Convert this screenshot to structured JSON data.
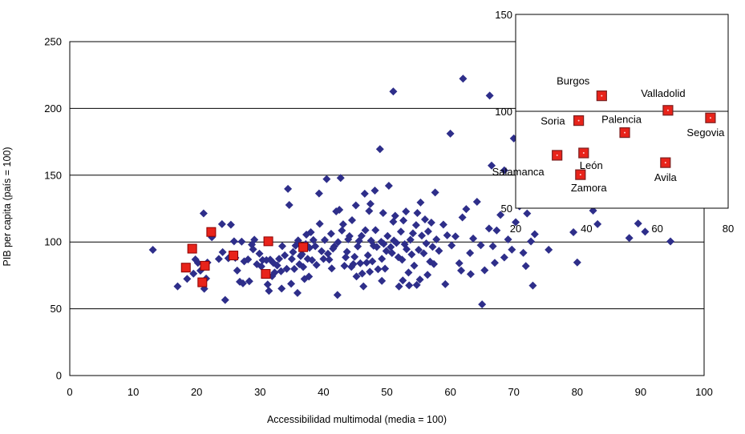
{
  "chart_data": [
    {
      "type": "scatter",
      "xlabel": "Accessibilidad multimodal (media = 100)",
      "ylabel": "PIB per capita (país = 100)",
      "xlim": [
        0,
        100
      ],
      "ylim": [
        0,
        250
      ],
      "x_ticks": [
        "0",
        "10",
        "20",
        "30",
        "40",
        "50",
        "60",
        "70",
        "80",
        "90",
        "100"
      ],
      "y_ticks": [
        "0",
        "50",
        "100",
        "150",
        "200",
        "250"
      ],
      "grid": "horizontal",
      "colors": {
        "other": "#2e2e8a",
        "highlight": "#e8231a",
        "highlight_border": "#8b0000"
      },
      "series": [
        {
          "marker": "diamond",
          "color": "#2e2e8a",
          "points": [
            [
              13.1,
              94.1
            ],
            [
              17,
              66.8
            ],
            [
              18.5,
              72.4
            ],
            [
              19.5,
              76.3
            ],
            [
              19.8,
              86.9
            ],
            [
              20.2,
              84.4
            ],
            [
              20.6,
              78.5
            ],
            [
              21.1,
              121.4
            ],
            [
              21.2,
              65
            ],
            [
              21.5,
              72.6
            ],
            [
              21.7,
              84.6
            ],
            [
              22.4,
              103.6
            ],
            [
              23.5,
              87.3
            ],
            [
              24,
              113.4
            ],
            [
              24.5,
              56.6
            ],
            [
              25,
              87.8
            ],
            [
              25.4,
              112.9
            ],
            [
              25.9,
              100.5
            ],
            [
              26.1,
              88.1
            ],
            [
              26.4,
              78.6
            ],
            [
              26.8,
              70.2
            ],
            [
              27.1,
              100.3
            ],
            [
              27.3,
              69
            ],
            [
              27.5,
              85.5
            ],
            [
              28.1,
              86.9
            ],
            [
              28.7,
              98
            ],
            [
              28.9,
              94.5
            ],
            [
              29.1,
              101.7
            ],
            [
              29.5,
              83.3
            ],
            [
              29.9,
              91.3
            ],
            [
              30.2,
              81.7
            ],
            [
              30.4,
              86.5
            ],
            [
              31,
              86.4
            ],
            [
              31.2,
              68.2
            ],
            [
              31.4,
              63.4
            ],
            [
              31.6,
              86.8
            ],
            [
              32.1,
              84.3
            ],
            [
              32.3,
              77.1
            ],
            [
              32.7,
              82.4
            ],
            [
              33,
              87.4
            ],
            [
              33.3,
              78.1
            ],
            [
              33.4,
              65.1
            ],
            [
              33.5,
              96.9
            ],
            [
              33.9,
              90
            ],
            [
              34.2,
              79.9
            ],
            [
              34.4,
              139.8
            ],
            [
              34.6,
              127.7
            ],
            [
              35,
              87.2
            ],
            [
              35.2,
              92.5
            ],
            [
              35.4,
              79.8
            ],
            [
              35.6,
              97.3
            ],
            [
              35.9,
              61.8
            ],
            [
              36,
              101.2
            ],
            [
              36.2,
              83.3
            ],
            [
              36.4,
              89.5
            ],
            [
              36.6,
              90.8
            ],
            [
              36.8,
              81.3
            ],
            [
              37,
              72.3
            ],
            [
              37.2,
              98.4
            ],
            [
              37.3,
              105.5
            ],
            [
              37.5,
              87.4
            ],
            [
              37.8,
              95.6
            ],
            [
              38,
              107.3
            ],
            [
              38.2,
              86.4
            ],
            [
              38.4,
              101.5
            ],
            [
              38.7,
              96.8
            ],
            [
              38.9,
              82.8
            ],
            [
              39.3,
              136.3
            ],
            [
              39.4,
              113.6
            ],
            [
              39.7,
              93.1
            ],
            [
              40,
              87.3
            ],
            [
              40.2,
              101.5
            ],
            [
              40.5,
              147.1
            ],
            [
              40.7,
              91.2
            ],
            [
              40.9,
              86.8
            ],
            [
              41.2,
              106.2
            ],
            [
              41.3,
              80.2
            ],
            [
              41.5,
              95
            ],
            [
              41.7,
              96.7
            ],
            [
              42,
              122.9
            ],
            [
              42.2,
              60.3
            ],
            [
              42.3,
              99.9
            ],
            [
              42.5,
              124.1
            ],
            [
              42.7,
              147.9
            ],
            [
              42.9,
              108.6
            ],
            [
              43.1,
              113.2
            ],
            [
              43.3,
              82.1
            ],
            [
              43.5,
              88.5
            ],
            [
              43.7,
              92.6
            ],
            [
              43.9,
              102
            ],
            [
              44.1,
              104.4
            ],
            [
              44.4,
              81.4
            ],
            [
              44.5,
              116.3
            ],
            [
              44.7,
              83.4
            ],
            [
              44.9,
              88.9
            ],
            [
              45.1,
              127.4
            ],
            [
              45.2,
              74.2
            ],
            [
              45.4,
              96.7
            ],
            [
              45.6,
              100.8
            ],
            [
              45.8,
              84.1
            ],
            [
              46,
              104.6
            ],
            [
              46.1,
              76.4
            ],
            [
              46.3,
              66.8
            ],
            [
              46.5,
              136.2
            ],
            [
              46.6,
              108.8
            ],
            [
              46.8,
              84.5
            ],
            [
              47,
              90
            ],
            [
              47.2,
              123.2
            ],
            [
              47.4,
              128.5
            ],
            [
              47.5,
              101
            ],
            [
              47.7,
              85.5
            ],
            [
              47.9,
              97.2
            ],
            [
              48.1,
              138.5
            ],
            [
              48.2,
              108.9
            ],
            [
              48.4,
              96.3
            ],
            [
              48.6,
              79.6
            ],
            [
              48.9,
              169.5
            ],
            [
              49.1,
              100.1
            ],
            [
              49.2,
              87.4
            ],
            [
              49.4,
              121.7
            ],
            [
              49.5,
              98.6
            ],
            [
              49.7,
              80
            ],
            [
              49.9,
              93.2
            ],
            [
              50.1,
              104.5
            ],
            [
              50.3,
              142.1
            ],
            [
              50.6,
              96.2
            ],
            [
              50.8,
              91.7
            ],
            [
              51,
              115.2
            ],
            [
              51.1,
              101.1
            ],
            [
              51.3,
              119.6
            ],
            [
              51.5,
              99.3
            ],
            [
              51.8,
              88.6
            ],
            [
              51.9,
              66.7
            ],
            [
              52.2,
              107.8
            ],
            [
              52.4,
              86.7
            ],
            [
              52.6,
              116.1
            ],
            [
              52.8,
              98.3
            ],
            [
              53,
              122.8
            ],
            [
              53.1,
              94.6
            ],
            [
              53.4,
              77.1
            ],
            [
              53.5,
              67.5
            ],
            [
              53.7,
              101.7
            ],
            [
              53.9,
              90.7
            ],
            [
              54.1,
              106.5
            ],
            [
              54.3,
              82.3
            ],
            [
              54.6,
              112.6
            ],
            [
              54.8,
              121.7
            ],
            [
              55,
              94.1
            ],
            [
              55.2,
              71.9
            ],
            [
              55.3,
              129.6
            ],
            [
              55.5,
              104.8
            ],
            [
              55.8,
              91.5
            ],
            [
              56,
              116.9
            ],
            [
              56.2,
              98.9
            ],
            [
              56.4,
              75.4
            ],
            [
              56.5,
              107.9
            ],
            [
              56.8,
              85.3
            ],
            [
              57,
              114.5
            ],
            [
              57.2,
              96.4
            ],
            [
              57.4,
              83.5
            ],
            [
              57.6,
              137.1
            ],
            [
              57.8,
              101.9
            ],
            [
              58.2,
              93.4
            ],
            [
              58.9,
              113
            ],
            [
              59.5,
              105
            ],
            [
              60.2,
              97.4
            ],
            [
              60.8,
              104.2
            ],
            [
              61.4,
              84.1
            ],
            [
              61.9,
              118.4
            ],
            [
              62.5,
              124.6
            ],
            [
              63.1,
              91.7
            ],
            [
              63.6,
              102.6
            ],
            [
              64.2,
              130.1
            ],
            [
              64.8,
              97.6
            ],
            [
              65.4,
              78.8
            ],
            [
              66.1,
              110.1
            ],
            [
              66.7,
              96.8
            ],
            [
              67.3,
              108.7
            ],
            [
              67.9,
              120.3
            ],
            [
              68.5,
              88.4
            ],
            [
              69.1,
              101.9
            ],
            [
              69.7,
              94.3
            ],
            [
              70.3,
              114.8
            ],
            [
              70.9,
              126.7
            ],
            [
              71.5,
              91.9
            ],
            [
              72.1,
              121.3
            ],
            [
              72.7,
              100.4
            ],
            [
              73.3,
              105.8
            ],
            [
              75.5,
              94.2
            ],
            [
              79.4,
              107.3
            ],
            [
              82.5,
              123.5
            ],
            [
              83.2,
              113.4
            ],
            [
              88.2,
              103
            ],
            [
              89.6,
              113.8
            ],
            [
              90.7,
              107.7
            ],
            [
              94.7,
              100.4
            ],
            [
              51,
              212.7
            ],
            [
              62,
              222.3
            ],
            [
              66.2,
              209.6
            ],
            [
              60,
              181.1
            ],
            [
              66.5,
              157.2
            ],
            [
              68.5,
              153.6
            ],
            [
              70,
              177.5
            ],
            [
              80,
              84.7
            ],
            [
              65,
              53.3
            ],
            [
              73,
              67.4
            ],
            [
              24.1,
              92.4
            ],
            [
              28.3,
              70.6
            ],
            [
              31.9,
              74.4
            ],
            [
              34.9,
              68.7
            ],
            [
              37.7,
              74.1
            ],
            [
              47.3,
              77.7
            ],
            [
              49.2,
              70.9
            ],
            [
              52.5,
              71.2
            ],
            [
              54.7,
              67.8
            ],
            [
              59.2,
              68.4
            ],
            [
              61.7,
              78.6
            ],
            [
              63.2,
              75.9
            ],
            [
              67,
              84.4
            ],
            [
              71.9,
              82
            ]
          ]
        },
        {
          "marker": "square",
          "color": "#e8231a",
          "points": [
            [
              18.3,
              80.8
            ],
            [
              19.3,
              95
            ],
            [
              20.9,
              69.8
            ],
            [
              21.3,
              82.2
            ],
            [
              22.3,
              107.5
            ],
            [
              25.8,
              89.9
            ],
            [
              30.9,
              76.1
            ],
            [
              31.3,
              100.5
            ],
            [
              36.8,
              96.1
            ]
          ]
        }
      ]
    },
    {
      "type": "scatter",
      "xlim": [
        20,
        80
      ],
      "ylim": [
        50,
        150
      ],
      "x_ticks": [
        "20",
        "40",
        "60",
        "80"
      ],
      "y_ticks": [
        "50",
        "100",
        "150"
      ],
      "grid": "y=100 line",
      "points": [
        {
          "label": "Burgos",
          "x": 44.3,
          "y": 108
        },
        {
          "label": "Valladolid",
          "x": 63,
          "y": 100.5
        },
        {
          "label": "Soria",
          "x": 37.8,
          "y": 95.2
        },
        {
          "label": "Palencia",
          "x": 50.8,
          "y": 89
        },
        {
          "label": "Segovia",
          "x": 75,
          "y": 96.6
        },
        {
          "label": "Salamanca",
          "x": 31.7,
          "y": 77.3
        },
        {
          "label": "León",
          "x": 39.2,
          "y": 78.5
        },
        {
          "label": "Avila",
          "x": 62.3,
          "y": 73.5
        },
        {
          "label": "Zamora",
          "x": 38.3,
          "y": 67.3
        }
      ]
    }
  ]
}
